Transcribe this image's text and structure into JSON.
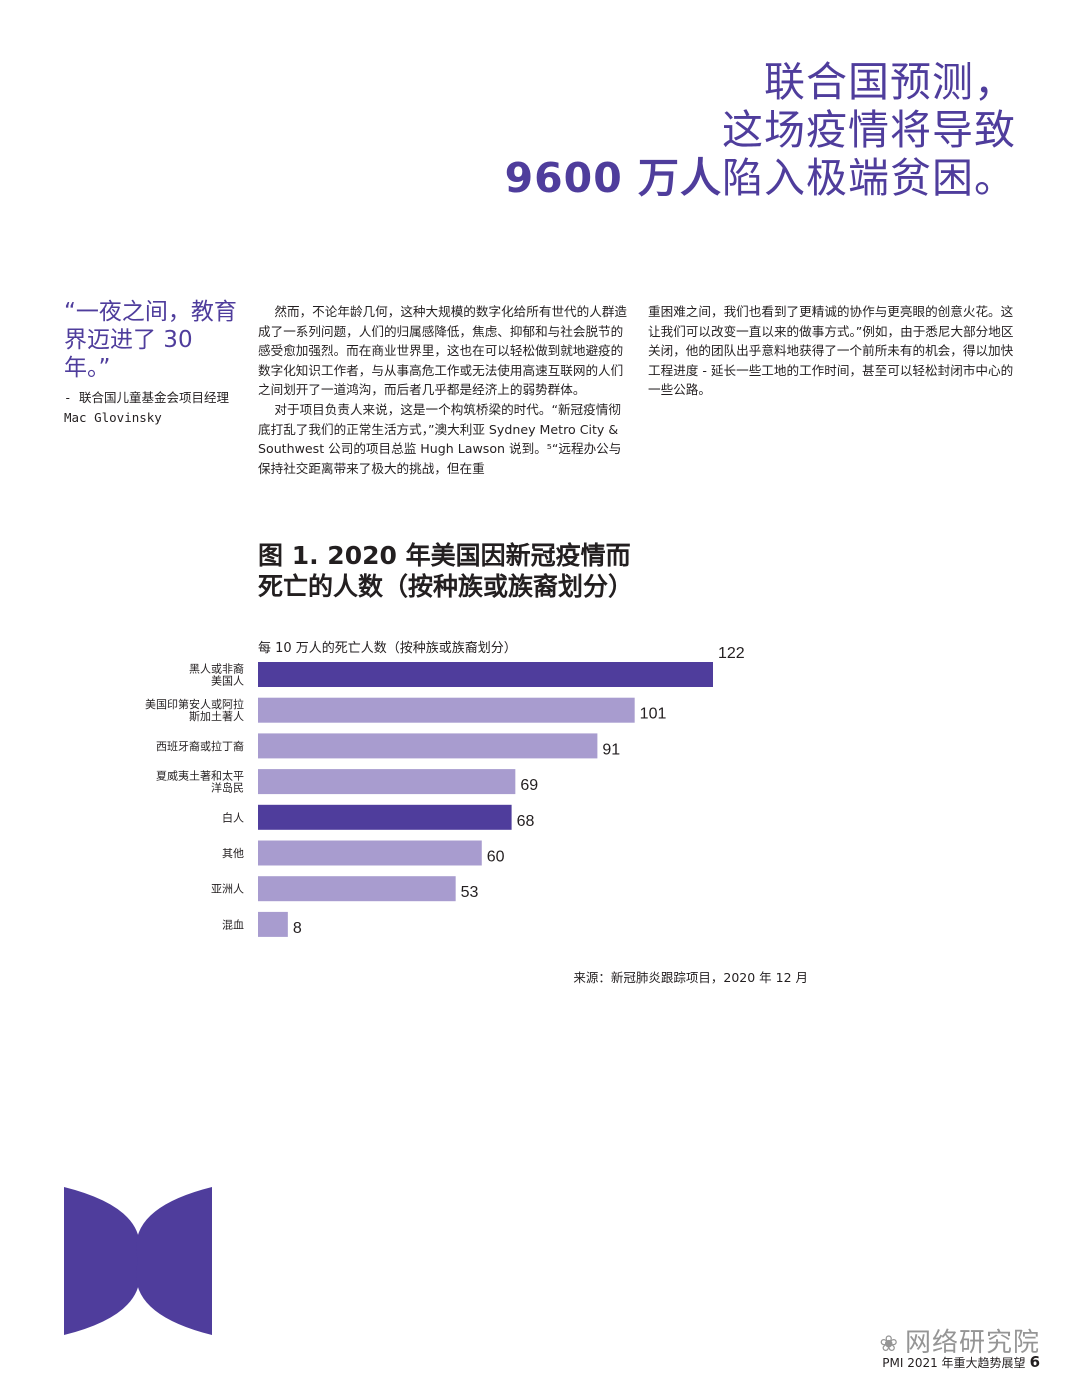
{
  "headline": {
    "line1": "联合国预测，",
    "line2": "这场疫情将导致",
    "line3_bold": "9600 万人",
    "line3_rest": "陷入极端贫困。"
  },
  "quote": {
    "text": "“一夜之间，教育界迈进了 30 年。”",
    "attribution": "- 联合国儿童基金会项目经理 Mac Glovinsky"
  },
  "body": {
    "col1_p1": "然而，不论年龄几何，这种大规模的数字化给所有世代的人群造成了一系列问题，人们的归属感降低，焦虑、抑郁和与社会脱节的感受愈加强烈。而在商业世界里，这也在可以轻松做到就地避疫的数字化知识工作者，与从事高危工作或无法使用高速互联网的人们之间划开了一道鸿沟，而后者几乎都是经济上的弱势群体。",
    "col1_p2": "对于项目负责人来说，这是一个构筑桥梁的时代。“新冠疫情彻底打乱了我们的正常生活方式，”澳大利亚 Sydney Metro City & Southwest 公司的项目总监 Hugh Lawson 说到。⁵“远程办公与保持社交距离带来了极大的挑战，但在重",
    "col2_p1": "重困难之间，我们也看到了更精诚的协作与更亮眼的创意火花。这让我们可以改变一直以来的做事方式。”例如，由于悉尼大部分地区关闭，他的团队出乎意料地获得了一个前所未有的机会，得以加快工程进度 - 延长一些工地的工作时间，甚至可以轻松封闭市中心的一些公路。"
  },
  "figure": {
    "title_line1": "图 1. 2020 年美国因新冠疫情而",
    "title_line2": "死亡的人数（按种族或族裔划分）",
    "source": "来源：新冠肺炎跟踪项目，2020 年 12 月"
  },
  "chart_data": {
    "type": "bar",
    "orientation": "horizontal",
    "title": "图 1. 2020 年美国因新冠疫情而死亡的人数（按种族或族裔划分）",
    "ylabel": "每 10 万人的死亡人数（按种族或族裔划分）",
    "categories": [
      [
        "黑人或非裔",
        "美国人"
      ],
      [
        "美国印第安人或阿拉",
        "斯加土著人"
      ],
      [
        "西班牙裔或拉丁裔"
      ],
      [
        "夏威夷土著和太平",
        "洋岛民"
      ],
      [
        "白人"
      ],
      [
        "其他"
      ],
      [
        "亚洲人"
      ],
      [
        "混血"
      ]
    ],
    "values": [
      122,
      101,
      91,
      69,
      68,
      60,
      53,
      8
    ],
    "highlighted": [
      true,
      false,
      false,
      false,
      true,
      false,
      false,
      false
    ],
    "colors": {
      "highlight": "#4f3d9c",
      "normal": "#a89ccf"
    },
    "xlim": [
      0,
      122
    ]
  },
  "footer": {
    "text": "PMI 2021 年重大趋势展望",
    "page": "6"
  },
  "watermark": "网络研究院"
}
